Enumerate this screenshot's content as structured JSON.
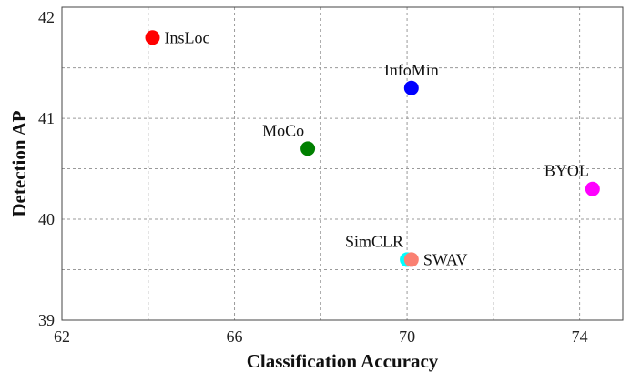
{
  "chart_data": {
    "type": "scatter",
    "title": "",
    "xlabel": "Classification Accuracy",
    "ylabel": "Detection AP",
    "xlim": [
      62,
      75
    ],
    "ylim": [
      39,
      42.1
    ],
    "xticks": [
      62,
      66,
      70,
      74
    ],
    "yticks": [
      39,
      40,
      41,
      42
    ],
    "x_gridlines": [
      62,
      64,
      66,
      68,
      70,
      72,
      74
    ],
    "y_gridlines": [
      39.5,
      40,
      40.5,
      41,
      41.5
    ],
    "grid": true,
    "legend": "none",
    "points": [
      {
        "name": "InsLoc",
        "x": 64.1,
        "y": 41.8,
        "color": "#ff0000",
        "label_side": "right"
      },
      {
        "name": "InfoMin",
        "x": 70.1,
        "y": 41.3,
        "color": "#0000ff",
        "label_side": "above"
      },
      {
        "name": "MoCo",
        "x": 67.7,
        "y": 40.7,
        "color": "#008000",
        "label_side": "above-left"
      },
      {
        "name": "BYOL",
        "x": 74.3,
        "y": 40.3,
        "color": "#ff00ff",
        "label_side": "above-left"
      },
      {
        "name": "SimCLR",
        "x": 70.0,
        "y": 39.6,
        "color": "#00ffff",
        "label_side": "above-left"
      },
      {
        "name": "SWAV",
        "x": 70.1,
        "y": 39.6,
        "color": "#fa8072",
        "label_side": "right"
      }
    ]
  }
}
